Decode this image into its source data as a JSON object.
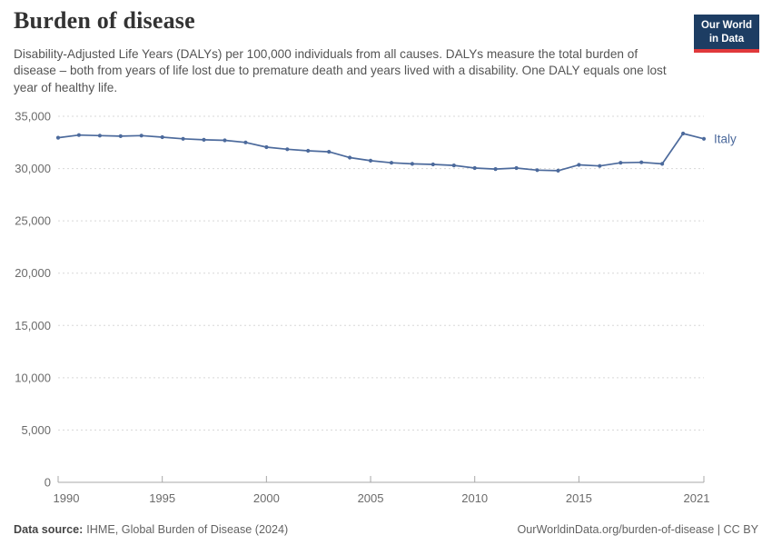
{
  "header": {
    "title": "Burden of disease",
    "logo": {
      "line1": "Our World",
      "line2": "in Data"
    },
    "subtitle": "Disability-Adjusted Life Years (DALYs) per 100,000 individuals from all causes. DALYs measure the total burden of disease – both from years of life lost due to premature death and years lived with a disability. One DALY equals one lost year of healthy life."
  },
  "footer": {
    "source_label": "Data source:",
    "source_text": "IHME, Global Burden of Disease (2024)",
    "link_text": "OurWorldinData.org/burden-of-disease | CC BY"
  },
  "colors": {
    "line": "#4c6a9c",
    "entity_label": "#4c6a9c",
    "grid": "#d8d8d8",
    "axis": "#a8a8a8",
    "tick_text": "#6b6b6b",
    "logo_bg": "#1d3d63",
    "logo_red": "#e0393b"
  },
  "chart_data": {
    "type": "line",
    "title": "Burden of disease",
    "ylabel": "DALYs per 100,000 individuals",
    "xlabel": "",
    "grid": true,
    "legend_position": "end-of-line",
    "ylim": [
      0,
      35000
    ],
    "yticks": [
      0,
      5000,
      10000,
      15000,
      20000,
      25000,
      30000,
      35000
    ],
    "xticks": [
      1990,
      1995,
      2000,
      2005,
      2010,
      2015,
      2021
    ],
    "x": [
      1990,
      1991,
      1992,
      1993,
      1994,
      1995,
      1996,
      1997,
      1998,
      1999,
      2000,
      2001,
      2002,
      2003,
      2004,
      2005,
      2006,
      2007,
      2008,
      2009,
      2010,
      2011,
      2012,
      2013,
      2014,
      2015,
      2016,
      2017,
      2018,
      2019,
      2020,
      2021
    ],
    "series": [
      {
        "name": "Italy",
        "values": [
          32950,
          33200,
          33150,
          33100,
          33150,
          33000,
          32850,
          32750,
          32700,
          32500,
          32050,
          31850,
          31700,
          31600,
          31050,
          30750,
          30550,
          30450,
          30400,
          30300,
          30050,
          29950,
          30050,
          29850,
          29800,
          30350,
          30250,
          30550,
          30600,
          30450,
          33350,
          32850
        ]
      }
    ]
  }
}
